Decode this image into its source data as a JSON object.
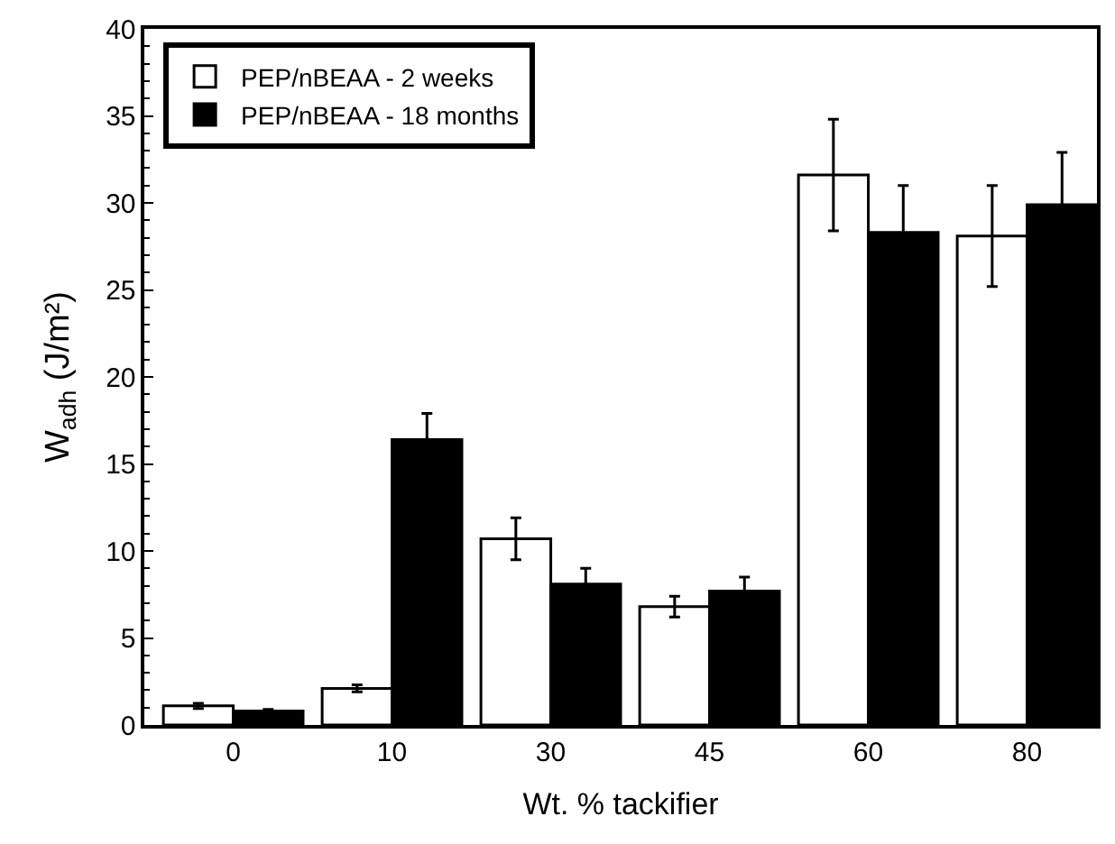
{
  "chart_data": {
    "type": "bar",
    "xlabel": "Wt. % tackifier",
    "ylabel": "W$_{adh}$ (J/m²)",
    "categories": [
      "0",
      "10",
      "30",
      "45",
      "60",
      "80"
    ],
    "series": [
      {
        "name": "PEP/nBEAA - 2 weeks",
        "color": "#ffffff",
        "values": [
          1.1,
          2.1,
          10.7,
          6.8,
          31.6,
          28.1
        ],
        "errors": [
          0.15,
          0.2,
          1.2,
          0.6,
          3.2,
          2.9
        ]
      },
      {
        "name": "PEP/nBEAA - 18 months",
        "color": "#000000",
        "values": [
          0.8,
          16.4,
          8.1,
          7.7,
          28.3,
          29.9
        ],
        "errors": [
          0.1,
          1.5,
          0.9,
          0.8,
          2.7,
          3.0
        ]
      }
    ],
    "ylim": [
      0,
      40
    ],
    "yticks": [
      0,
      5,
      10,
      15,
      20,
      25,
      30,
      35,
      40
    ],
    "legend": "top left"
  }
}
